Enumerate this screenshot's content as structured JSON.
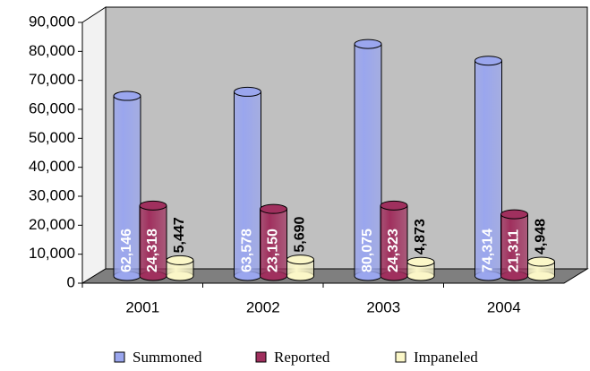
{
  "chart_data": {
    "type": "bar3d",
    "categories": [
      "2001",
      "2002",
      "2003",
      "2004"
    ],
    "series": [
      {
        "name": "Summoned",
        "color": "#9aa6ee",
        "values": [
          62146,
          63578,
          80075,
          74314
        ],
        "value_labels": [
          "62,146",
          "63,578",
          "80,075",
          "74,314"
        ]
      },
      {
        "name": "Reported",
        "color": "#a0305e",
        "values": [
          24318,
          23150,
          24323,
          21311
        ],
        "value_labels": [
          "24,318",
          "23,150",
          "24,323",
          "21,311"
        ]
      },
      {
        "name": "Impaneled",
        "color": "#fbf7c8",
        "values": [
          5447,
          5690,
          4873,
          4948
        ],
        "value_labels": [
          "5,447",
          "5,690",
          "4,873",
          "4,948"
        ]
      }
    ],
    "ylim": [
      0,
      90000
    ],
    "yticks": [
      0,
      {
        "value": 10000,
        "label": "10,000"
      },
      {
        "value": 20000,
        "label": "20,000"
      },
      {
        "value": 30000,
        "label": "30,000"
      },
      {
        "value": 40000,
        "label": "40,000"
      },
      {
        "value": 50000,
        "label": "50,000"
      },
      {
        "value": 60000,
        "label": "60,000"
      },
      {
        "value": 70000,
        "label": "70,000"
      },
      {
        "value": 80000,
        "label": "80,000"
      },
      {
        "value": 90000,
        "label": "90,000"
      }
    ],
    "grid": false
  }
}
